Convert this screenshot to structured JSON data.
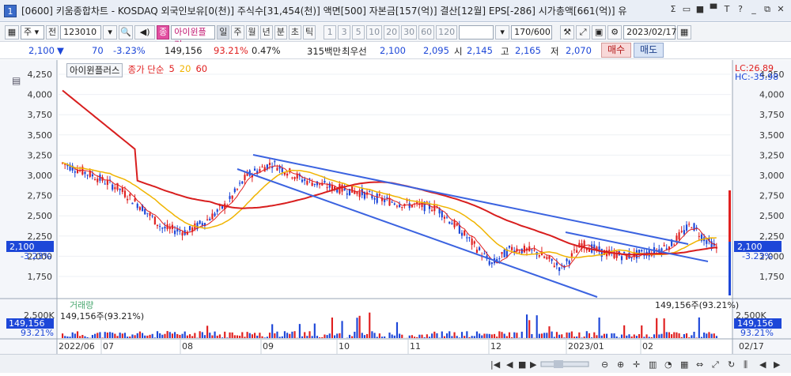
{
  "window": {
    "number": "1",
    "title": "[0600] 키움종합차트 - KOSDAQ 외국인보유[0(천)] 주식수[31,454(천)] 액면[500] 자본금[157(억)] 결산[12월] EPS[-286] 시가총액[661(억)] 유",
    "buttons": [
      "Σ",
      "▭",
      "■",
      "▀",
      "T",
      "?",
      "_",
      "⧉",
      "✕"
    ]
  },
  "toolbar": {
    "type_label": "주",
    "full_label": "전",
    "code_value": "123010",
    "stock_name": "아이윈플러",
    "stock_badge": "종",
    "periods": [
      "일",
      "주",
      "월",
      "년",
      "분",
      "초",
      "틱"
    ],
    "minutes": [
      "1",
      "3",
      "5",
      "10",
      "20",
      "30",
      "60",
      "120"
    ],
    "count_value": "170",
    "count_total": "/600",
    "date_value": "2023/02/17"
  },
  "quote": {
    "price": "2,100",
    "arrow": "▼",
    "change": "70",
    "change_pct": "-3.23%",
    "volume": "149,156",
    "vol_ratio": "93.21%",
    "turnover": "0.47%",
    "amount": "315백만",
    "priority_label": "최우선",
    "ask": "2,100",
    "bid": "2,095",
    "open_label": "시",
    "open": "2,145",
    "high_label": "고",
    "high": "2,165",
    "low_label": "저",
    "low": "2,070",
    "buy_label": "매수",
    "sell_label": "매도"
  },
  "chart": {
    "legend_name": "아이윈플러스",
    "legend_main": "종가 단순",
    "ma": [
      {
        "period": "5",
        "color": "#e02020"
      },
      {
        "period": "20",
        "color": "#f0b400"
      },
      {
        "period": "60",
        "color": "#e02020"
      }
    ],
    "lc_label": "LC:26.89",
    "hc_label": "HC:-35.98",
    "current_price": "2,100",
    "current_pct": "-3.23%",
    "y_ticks": [
      "4,250",
      "4,000",
      "3,750",
      "3,500",
      "3,250",
      "3,000",
      "2,750",
      "2,500",
      "2,250",
      "2,000",
      "1,750"
    ],
    "x_ticks": [
      "2022/06",
      "07",
      "08",
      "09",
      "10",
      "11",
      "12",
      "2023/01",
      "02",
      "02/17"
    ]
  },
  "volume_panel": {
    "title": "거래량",
    "value_label": "149,156주(93.21%)",
    "y_top": "2,500K",
    "current": "149,156",
    "current_pct": "93.21%"
  },
  "colors": {
    "up": "#e02020",
    "down": "#1d47d8",
    "ma20": "#f0b400",
    "trendline": "#3b63e0"
  }
}
